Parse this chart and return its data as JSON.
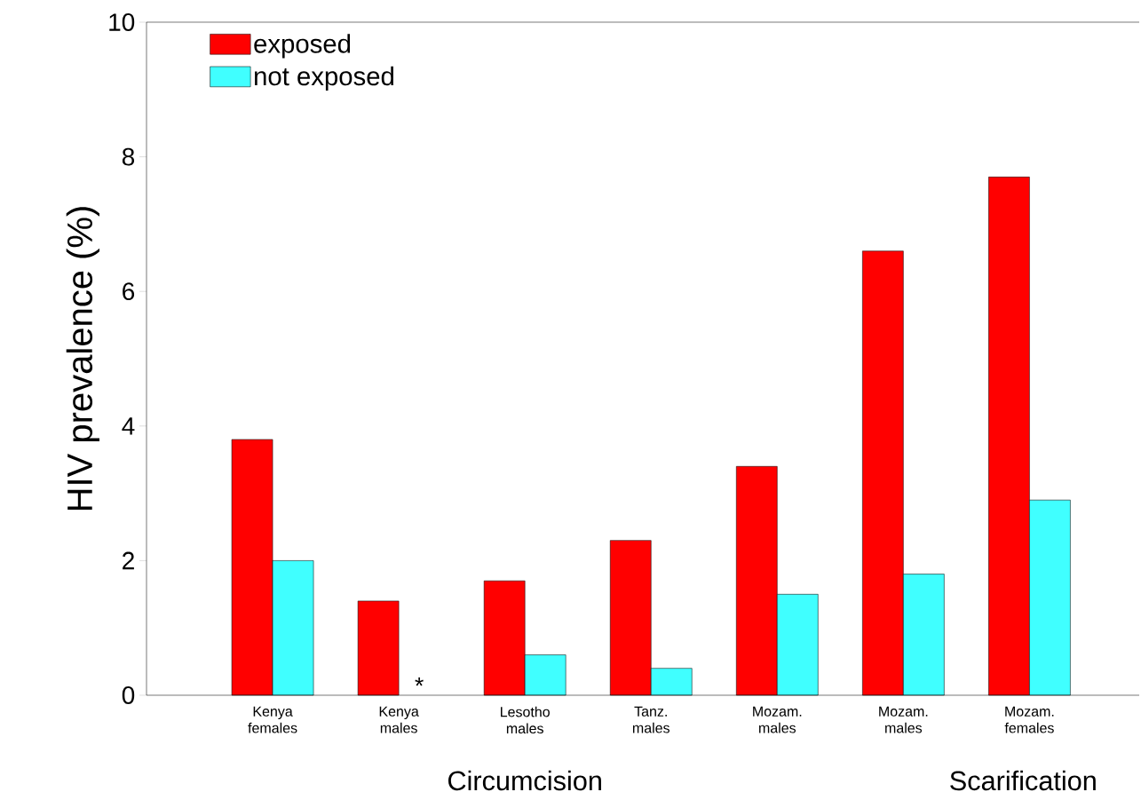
{
  "chart_data": {
    "type": "bar",
    "ylabel": "HIV prevalence (%)",
    "categories": [
      "Kenya females",
      "Kenya males",
      "Lesotho males",
      "Tanz. males",
      "Mozam. males",
      "Mozam. males",
      "Mozam. females"
    ],
    "series": [
      {
        "name": "exposed",
        "color": "#ff0000",
        "values": [
          3.8,
          1.4,
          1.7,
          2.3,
          3.4,
          6.6,
          7.7
        ]
      },
      {
        "name": "not exposed",
        "color": "#40ffff",
        "values": [
          2.0,
          null,
          0.6,
          0.4,
          1.5,
          1.8,
          2.9
        ]
      }
    ],
    "ylim": [
      0,
      10
    ],
    "yticks": [
      0,
      2,
      4,
      6,
      8,
      10
    ],
    "legend": "top left",
    "annotations": [
      {
        "text": "*",
        "x": "Kenya males",
        "y": 0
      },
      "Circumcision",
      "Scarification"
    ]
  }
}
